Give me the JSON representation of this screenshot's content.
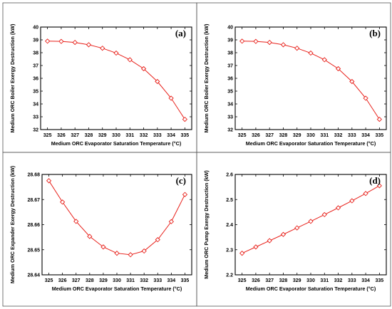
{
  "figure": {
    "series_color": "#e8201a"
  },
  "chart_data": [
    {
      "type": "line",
      "panel_label": "(a)",
      "xlabel": "Medium ORC Evaporator Saturation Temperature (°C)",
      "ylabel": "Medium ORC Boiler Exergy Destruction (kW)",
      "x": [
        325,
        326,
        327,
        328,
        329,
        330,
        331,
        332,
        333,
        334,
        335
      ],
      "values": [
        38.9,
        38.88,
        38.8,
        38.62,
        38.35,
        37.97,
        37.45,
        36.75,
        35.75,
        34.45,
        32.8
      ],
      "xlim": [
        324.5,
        335.5
      ],
      "ylim": [
        32,
        40
      ],
      "xticks": [
        325,
        326,
        327,
        328,
        329,
        330,
        331,
        332,
        333,
        334,
        335
      ],
      "yticks": [
        32,
        33,
        34,
        35,
        36,
        37,
        38,
        39,
        40
      ],
      "ytick_labels": [
        "32",
        "33",
        "34",
        "35",
        "36",
        "37",
        "38",
        "39",
        "40"
      ],
      "grid": false,
      "marker": "open-diamond"
    },
    {
      "type": "line",
      "panel_label": "(b)",
      "xlabel": "Medium ORC Evaporator Saturation Temperature (°C)",
      "ylabel": "Medium ORC Boiler Exergy Destruction (kW)",
      "x": [
        325,
        326,
        327,
        328,
        329,
        330,
        331,
        332,
        333,
        334,
        335
      ],
      "values": [
        38.9,
        38.88,
        38.8,
        38.62,
        38.35,
        37.97,
        37.45,
        36.75,
        35.75,
        34.45,
        32.8
      ],
      "xlim": [
        324.5,
        335.5
      ],
      "ylim": [
        32,
        40
      ],
      "xticks": [
        325,
        326,
        327,
        328,
        329,
        330,
        331,
        332,
        333,
        334,
        335
      ],
      "yticks": [
        32,
        33,
        34,
        35,
        36,
        37,
        38,
        39,
        40
      ],
      "ytick_labels": [
        "32",
        "33",
        "34",
        "35",
        "36",
        "37",
        "38",
        "39",
        "40"
      ],
      "grid": false,
      "marker": "open-diamond"
    },
    {
      "type": "line",
      "panel_label": "(c)",
      "xlabel": "Medium ORC Evaporator Saturation Temperature (°C)",
      "ylabel": "Medium ORC Expander Exergy Destruction (kW)",
      "x": [
        325,
        326,
        327,
        328,
        329,
        330,
        331,
        332,
        333,
        334,
        335
      ],
      "values": [
        28.6775,
        28.669,
        28.6613,
        28.6553,
        28.6511,
        28.6486,
        28.648,
        28.6495,
        28.654,
        28.6612,
        28.672
      ],
      "xlim": [
        324.5,
        335.5
      ],
      "ylim": [
        28.64,
        28.68
      ],
      "xticks": [
        325,
        326,
        327,
        328,
        329,
        330,
        331,
        332,
        333,
        334,
        335
      ],
      "yticks": [
        28.64,
        28.65,
        28.66,
        28.67,
        28.68
      ],
      "ytick_labels": [
        "28.64",
        "28.65",
        "28.66",
        "28.67",
        "28.68"
      ],
      "grid": false,
      "marker": "open-diamond"
    },
    {
      "type": "line",
      "panel_label": "(d)",
      "xlabel": "Medium ORC Evaporator Saturation Temperature (°C)",
      "ylabel": "Medium ORC Pump Exergy Destruction (kW)",
      "x": [
        325,
        326,
        327,
        328,
        329,
        330,
        331,
        332,
        333,
        334,
        335
      ],
      "values": [
        2.286,
        2.311,
        2.336,
        2.361,
        2.387,
        2.413,
        2.44,
        2.467,
        2.495,
        2.524,
        2.555
      ],
      "xlim": [
        324.5,
        335.5
      ],
      "ylim": [
        2.2,
        2.6
      ],
      "xticks": [
        325,
        326,
        327,
        328,
        329,
        330,
        331,
        332,
        333,
        334,
        335
      ],
      "yticks": [
        2.2,
        2.3,
        2.4,
        2.5,
        2.6
      ],
      "ytick_labels": [
        "2.2",
        "2.3",
        "2.4",
        "2.5",
        "2.6"
      ],
      "grid": false,
      "marker": "open-diamond"
    }
  ]
}
